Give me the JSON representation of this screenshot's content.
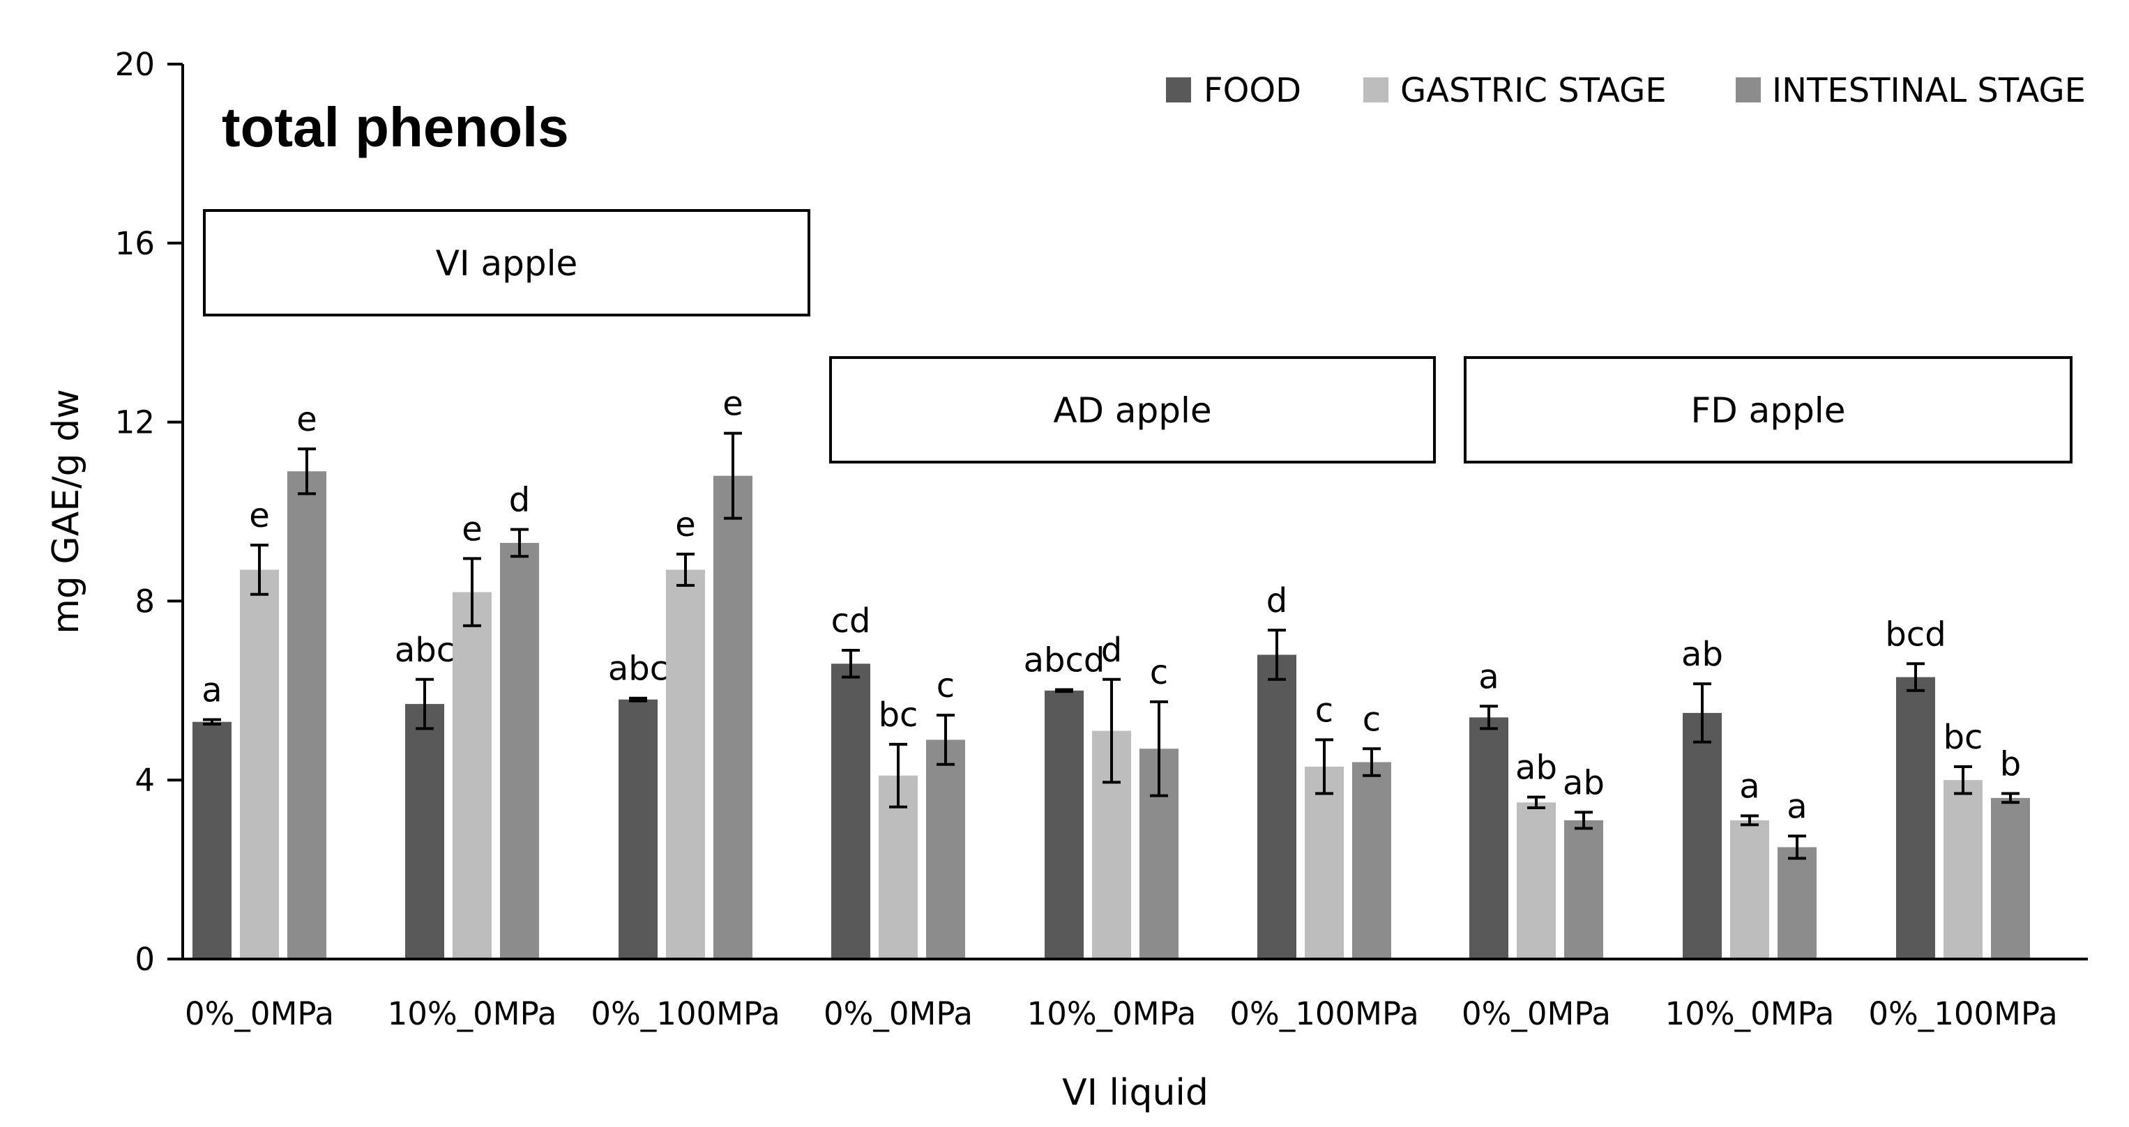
{
  "chart_data": {
    "type": "bar",
    "title": "total phenols",
    "xlabel": "VI liquid",
    "ylabel": "mg GAE/g dw",
    "ylim": [
      0,
      20
    ],
    "yticks": [
      "0",
      "4",
      "8",
      "12",
      "16",
      "20"
    ],
    "legend_position": "top-right",
    "colors": {
      "FOOD": "#595959",
      "GASTRIC STAGE": "#bdbdbd",
      "INTESTINAL STAGE": "#8c8c8c"
    },
    "group_labels": [
      "VI apple",
      "AD apple",
      "FD apple"
    ],
    "categories": [
      "0%_0MPa",
      "10%_0MPa",
      "0%_100MPa",
      "0%_0MPa",
      "10%_0MPa",
      "0%_100MPa",
      "0%_0MPa",
      "10%_0MPa",
      "0%_100MPa"
    ],
    "series": [
      {
        "name": "FOOD",
        "values": [
          5.3,
          5.7,
          5.8,
          6.6,
          6.0,
          6.8,
          5.4,
          5.5,
          6.3
        ],
        "errors": [
          0.05,
          0.55,
          0.03,
          0.3,
          0.02,
          0.55,
          0.25,
          0.65,
          0.3
        ],
        "letters": [
          "a",
          "abc",
          "abc",
          "cd",
          "abcd",
          "d",
          "a",
          "ab",
          "bcd"
        ]
      },
      {
        "name": "GASTRIC STAGE",
        "values": [
          8.7,
          8.2,
          8.7,
          4.1,
          5.1,
          4.3,
          3.5,
          3.1,
          4.0
        ],
        "errors": [
          0.55,
          0.75,
          0.35,
          0.7,
          1.15,
          0.6,
          0.12,
          0.1,
          0.3
        ],
        "letters": [
          "e",
          "e",
          "e",
          "bc",
          "d",
          "c",
          "ab",
          "a",
          "bc"
        ]
      },
      {
        "name": "INTESTINAL STAGE",
        "values": [
          10.9,
          9.3,
          10.8,
          4.9,
          4.7,
          4.4,
          3.1,
          2.5,
          3.6
        ],
        "errors": [
          0.5,
          0.3,
          0.95,
          0.55,
          1.05,
          0.3,
          0.18,
          0.25,
          0.1
        ],
        "letters": [
          "e",
          "d",
          "e",
          "c",
          "c",
          "c",
          "ab",
          "a",
          "b"
        ]
      }
    ]
  }
}
